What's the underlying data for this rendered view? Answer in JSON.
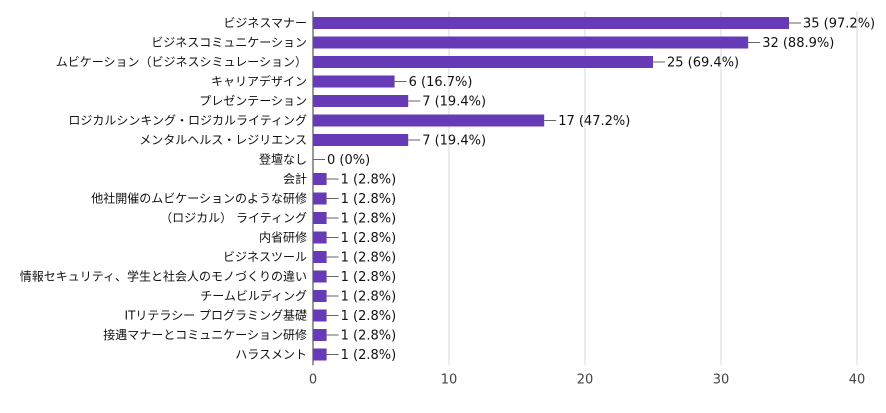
{
  "chart_data": {
    "type": "bar",
    "orientation": "horizontal",
    "title": "",
    "xlabel": "",
    "ylabel": "",
    "xlim": [
      0,
      40
    ],
    "ticks": [
      0,
      10,
      20,
      30,
      40
    ],
    "grid": true,
    "bar_color": "#673AB7",
    "categories": [
      "ビジネスマナー",
      "ビジネスコミュニケーション",
      "ムビケーション（ビジネスシミュレーション）",
      "キャリアデザイン",
      "プレゼンテーション",
      "ロジカルシンキング・ロジカルライティング",
      "メンタルヘルス・レジリエンス",
      "登壇なし",
      "会計",
      "他社開催のムビケーションのような研修",
      "（ロジカル） ライティング",
      "内省研修",
      "ビジネスツール",
      "情報セキュリティ、学生と社会人のモノづくりの違い",
      "チームビルディング",
      "ITリテラシー プログラミング基礎",
      "接遇マナーとコミュニケーション研修",
      "ハラスメント"
    ],
    "values": [
      35,
      32,
      25,
      6,
      7,
      17,
      7,
      0,
      1,
      1,
      1,
      1,
      1,
      1,
      1,
      1,
      1,
      1
    ],
    "data_labels": [
      "35 (97.2%)",
      "32 (88.9%)",
      "25 (69.4%)",
      "6 (16.7%)",
      "7 (19.4%)",
      "17 (47.2%)",
      "7 (19.4%)",
      "0 (0%)",
      "1 (2.8%)",
      "1 (2.8%)",
      "1 (2.8%)",
      "1 (2.8%)",
      "1 (2.8%)",
      "1 (2.8%)",
      "1 (2.8%)",
      "1 (2.8%)",
      "1 (2.8%)",
      "1 (2.8%)"
    ]
  }
}
